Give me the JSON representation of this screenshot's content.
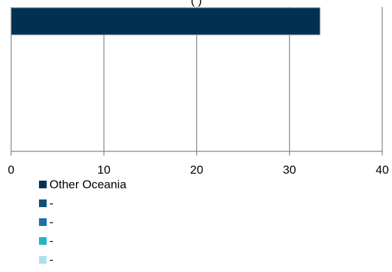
{
  "chart_data": {
    "type": "bar",
    "orientation": "horizontal",
    "title": "(                                              )",
    "categories": [
      ""
    ],
    "series": [
      {
        "name": "Other Oceania",
        "values": [
          33.3
        ],
        "color": "#003152"
      },
      {
        "name": "-",
        "values": [
          0
        ],
        "color": "#0f4f78"
      },
      {
        "name": "-",
        "values": [
          0
        ],
        "color": "#1f6ea8"
      },
      {
        "name": "-",
        "values": [
          0
        ],
        "color": "#22b5c2"
      },
      {
        "name": "-",
        "values": [
          0
        ],
        "color": "#aee0ec"
      }
    ],
    "xlim": [
      0,
      40
    ],
    "x_ticks": [
      "0",
      "10",
      "20",
      "30",
      "40"
    ],
    "grid": true,
    "legend_position": "bottom"
  },
  "colors": {
    "axis": "#7f7f7f",
    "grid": "#7f7f7f",
    "text": "#000000"
  }
}
